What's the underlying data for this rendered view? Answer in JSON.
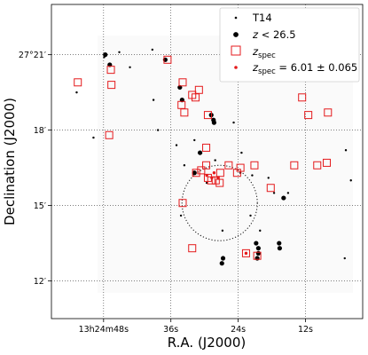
{
  "chart_data": {
    "type": "scatter",
    "xlabel": "R.A. (J2000)",
    "ylabel": "Declination (J2000)",
    "x_ticks": [
      {
        "value": 48,
        "label": "13h24m48s"
      },
      {
        "value": 36,
        "label": "36s"
      },
      {
        "value": 24,
        "label": "24s"
      },
      {
        "value": 12,
        "label": "12s"
      }
    ],
    "y_ticks": [
      {
        "value": 21,
        "label": "27°21′"
      },
      {
        "value": 18,
        "label": "18′"
      },
      {
        "value": 15,
        "label": "15′"
      },
      {
        "value": 12,
        "label": "12′"
      }
    ],
    "xlim": [
      57.3,
      1.8
    ],
    "ylim": [
      10.5,
      23.0
    ],
    "x_axis_direction": "decreasing",
    "grid": "dotted",
    "legend_position": "top-right",
    "legend": [
      {
        "marker": "small-dot",
        "label": "T14"
      },
      {
        "marker": "dot",
        "label": "z < 26.5"
      },
      {
        "marker": "open-square",
        "label": "z_spec",
        "color": "#e41a1c"
      },
      {
        "marker": "red-dot",
        "label": "z_spec = 6.01 ± 0.065",
        "color": "#e41a1c"
      }
    ],
    "circle": {
      "center_ra_s": 27.3,
      "center_dec_min": 15.1,
      "radius_arcmin": 1.5
    },
    "series": [
      {
        "name": "T14",
        "points": [
          [
            52.8,
            19.5
          ],
          [
            47.9,
            20.9
          ],
          [
            45.2,
            21.1
          ],
          [
            39.3,
            21.2
          ],
          [
            43.3,
            20.5
          ],
          [
            39.1,
            19.2
          ],
          [
            38.3,
            18.0
          ],
          [
            49.8,
            17.7
          ],
          [
            35.0,
            17.4
          ],
          [
            31.8,
            17.6
          ],
          [
            24.8,
            18.3
          ],
          [
            33.6,
            16.6
          ],
          [
            28.1,
            16.8
          ],
          [
            23.6,
            16.3
          ],
          [
            21.5,
            16.2
          ],
          [
            21.8,
            14.6
          ],
          [
            17.6,
            15.5
          ],
          [
            15.1,
            15.5
          ],
          [
            18.6,
            16.1
          ],
          [
            4.8,
            17.2
          ],
          [
            3.9,
            16.0
          ],
          [
            20.1,
            14.0
          ],
          [
            26.8,
            14.0
          ],
          [
            5.0,
            12.9
          ],
          [
            34.2,
            14.6
          ],
          [
            29.6,
            15.9
          ],
          [
            23.4,
            17.1
          ]
        ]
      },
      {
        "name": "z < 26.5",
        "points": [
          [
            47.7,
            21.0
          ],
          [
            46.9,
            20.6
          ],
          [
            37.0,
            20.8
          ],
          [
            34.4,
            19.7
          ],
          [
            28.8,
            18.6
          ],
          [
            34.0,
            19.2
          ],
          [
            28.3,
            18.3
          ],
          [
            28.4,
            18.4
          ],
          [
            30.8,
            17.1
          ],
          [
            31.8,
            16.3
          ],
          [
            15.9,
            15.3
          ],
          [
            16.7,
            13.5
          ],
          [
            16.6,
            13.3
          ],
          [
            20.8,
            13.5
          ],
          [
            20.4,
            13.3
          ],
          [
            20.4,
            13.1
          ],
          [
            20.6,
            12.9
          ],
          [
            26.7,
            12.9
          ],
          [
            26.9,
            12.7
          ]
        ]
      },
      {
        "name": "z_spec",
        "points": [
          [
            52.6,
            19.9
          ],
          [
            46.7,
            20.4
          ],
          [
            46.6,
            19.8
          ],
          [
            36.6,
            20.8
          ],
          [
            33.9,
            19.9
          ],
          [
            32.2,
            19.4
          ],
          [
            34.1,
            19.0
          ],
          [
            33.6,
            18.7
          ],
          [
            31.6,
            19.3
          ],
          [
            31.0,
            19.6
          ],
          [
            29.4,
            18.6
          ],
          [
            47.0,
            17.8
          ],
          [
            29.7,
            17.3
          ],
          [
            29.7,
            16.6
          ],
          [
            31.5,
            16.3
          ],
          [
            30.6,
            16.4
          ],
          [
            29.4,
            16.1
          ],
          [
            28.8,
            16.0
          ],
          [
            28.0,
            16.0
          ],
          [
            27.2,
            16.3
          ],
          [
            27.3,
            15.9
          ],
          [
            25.7,
            16.6
          ],
          [
            24.2,
            16.3
          ],
          [
            23.6,
            16.5
          ],
          [
            21.1,
            16.6
          ],
          [
            18.2,
            15.7
          ],
          [
            14.0,
            16.6
          ],
          [
            12.6,
            19.3
          ],
          [
            11.5,
            18.6
          ],
          [
            8.0,
            18.7
          ],
          [
            8.2,
            16.7
          ],
          [
            33.9,
            15.1
          ],
          [
            32.2,
            13.3
          ],
          [
            22.6,
            13.1
          ],
          [
            20.6,
            13.0
          ],
          [
            9.9,
            16.6
          ]
        ]
      },
      {
        "name": "z_spec = 6.01 ± 0.065",
        "points": [
          [
            29.6,
            16.2
          ],
          [
            28.7,
            16.1
          ],
          [
            28.3,
            16.3
          ],
          [
            27.6,
            16.1
          ],
          [
            22.6,
            13.1
          ]
        ]
      }
    ]
  }
}
